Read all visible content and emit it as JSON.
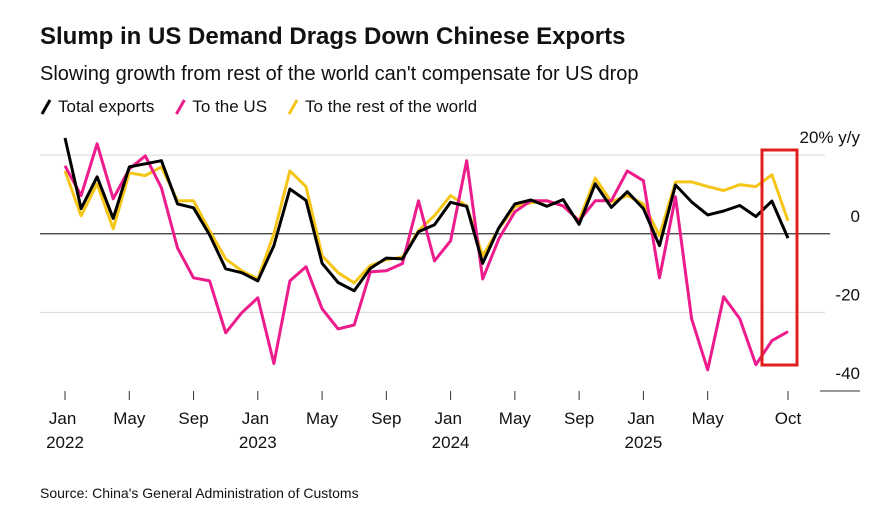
{
  "chart_data": {
    "type": "line",
    "title": "Slump in US Demand Drags Down Chinese Exports",
    "subtitle": "Slowing growth from rest of the world can't compensate for US drop",
    "source": "Source: China's General Administration of Customs",
    "categories": [
      "Jan 2022",
      null,
      null,
      null,
      "May",
      null,
      null,
      null,
      "Sep",
      null,
      null,
      null,
      "Jan 2023",
      null,
      null,
      null,
      "May",
      null,
      null,
      null,
      "Sep",
      null,
      null,
      null,
      "Jan 2024",
      null,
      null,
      null,
      "May",
      null,
      null,
      null,
      "Sep",
      null,
      null,
      null,
      "Jan 2025",
      null,
      null,
      null,
      "May",
      null,
      null,
      null,
      null,
      "Oct"
    ],
    "series": [
      {
        "name": "Total exports",
        "color": "#000000",
        "values": [
          24.4,
          6.4,
          14.5,
          3.9,
          17,
          17.8,
          18.6,
          7.6,
          6.6,
          -0.3,
          -8.9,
          -9.9,
          -12,
          -3,
          11.4,
          8.5,
          -7.5,
          -12.4,
          -14.5,
          -8.8,
          -6.2,
          -6.4,
          0.5,
          2.3,
          8,
          7,
          -7.5,
          1.5,
          7.6,
          8.6,
          7,
          8.7,
          2.4,
          12.7,
          6.7,
          10.7,
          6.4,
          -3,
          12.4,
          8.1,
          4.8,
          5.8,
          7.2,
          4.4,
          8.3,
          -1.1
        ]
      },
      {
        "name": "To the US",
        "color": "#ec1c8c",
        "values": [
          17.3,
          9.7,
          22.9,
          8.9,
          16.5,
          19.8,
          11.7,
          -3.6,
          -11.2,
          -12,
          -25.2,
          -20.1,
          -16.3,
          -33,
          -12,
          -8.4,
          -19.1,
          -24.2,
          -23.2,
          -9.7,
          -9.4,
          -7.6,
          8.4,
          -6.9,
          -1.8,
          18.6,
          -11.5,
          -1.3,
          5.6,
          8.4,
          8.4,
          7.1,
          3.3,
          8.4,
          8.4,
          16,
          13.5,
          -11.2,
          9.4,
          -21.6,
          -34.6,
          -16,
          -21.6,
          -33.3,
          -27.2,
          -24.9
        ]
      },
      {
        "name": "To the rest of the world",
        "color": "#f5c518",
        "values": [
          16,
          4.6,
          12.7,
          1.3,
          15.5,
          14.8,
          17,
          8.4,
          8.4,
          0.8,
          -6.4,
          -9.4,
          -11.5,
          0,
          16,
          12,
          -5.6,
          -9.9,
          -12.5,
          -8.1,
          -6.6,
          -5.9,
          0.8,
          4.6,
          9.7,
          7.1,
          -5.6,
          1.3,
          6.9,
          7.9,
          8.4,
          7.1,
          3.3,
          14.2,
          8.1,
          9.7,
          7.6,
          -0.5,
          13.2,
          13.2,
          12,
          11,
          12.5,
          12,
          15,
          3.3
        ]
      }
    ],
    "ylim": [
      -40,
      25
    ],
    "yticks": [
      {
        "value": 20,
        "label": "20% y/y"
      },
      0,
      -20,
      -40
    ],
    "grid": true
  }
}
